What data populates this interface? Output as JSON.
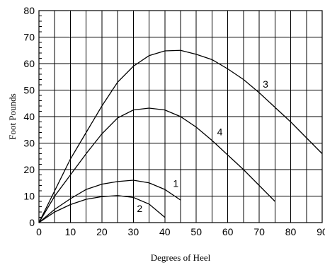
{
  "chart_data": {
    "type": "line",
    "xlabel": "Degrees of Heel",
    "ylabel": "Foot Pounds",
    "xlim": [
      0,
      90
    ],
    "ylim": [
      0,
      80
    ],
    "x_ticks": [
      0,
      10,
      20,
      30,
      40,
      50,
      60,
      70,
      80,
      90
    ],
    "y_ticks": [
      0,
      10,
      20,
      30,
      40,
      50,
      60,
      70,
      80
    ],
    "grid": true,
    "series": [
      {
        "name": "1",
        "x": [
          0,
          5,
          10,
          15,
          20,
          25,
          30,
          35,
          40,
          45
        ],
        "y": [
          0,
          5,
          9,
          12.5,
          14.5,
          15.5,
          16,
          15,
          12.5,
          8.5
        ]
      },
      {
        "name": "2",
        "x": [
          0,
          5,
          10,
          15,
          20,
          25,
          30,
          35,
          40
        ],
        "y": [
          0,
          4,
          6.8,
          8.8,
          9.8,
          10.2,
          9.5,
          7,
          2
        ]
      },
      {
        "name": "3",
        "x": [
          0,
          5,
          10,
          15,
          20,
          25,
          30,
          35,
          40,
          45,
          50,
          55,
          60,
          65,
          70,
          75,
          80,
          85,
          90
        ],
        "y": [
          0,
          12,
          24,
          34,
          44,
          53,
          59,
          63,
          64.8,
          65,
          63.5,
          61.5,
          58,
          54,
          49,
          43.5,
          38,
          32,
          26
        ]
      },
      {
        "name": "4",
        "x": [
          0,
          5,
          10,
          15,
          20,
          25,
          30,
          35,
          40,
          45,
          50,
          55,
          60,
          65,
          70,
          75
        ],
        "y": [
          0,
          10,
          18,
          26,
          33.5,
          39.5,
          42.5,
          43.2,
          42.5,
          40,
          36,
          31,
          25.5,
          20,
          14,
          8
        ]
      }
    ],
    "curve_labels": [
      {
        "text": "1",
        "x": 43.5,
        "y": 13.5
      },
      {
        "text": "2",
        "x": 32,
        "y": 4
      },
      {
        "text": "3",
        "x": 72,
        "y": 51
      },
      {
        "text": "4",
        "x": 57.5,
        "y": 33
      }
    ]
  }
}
